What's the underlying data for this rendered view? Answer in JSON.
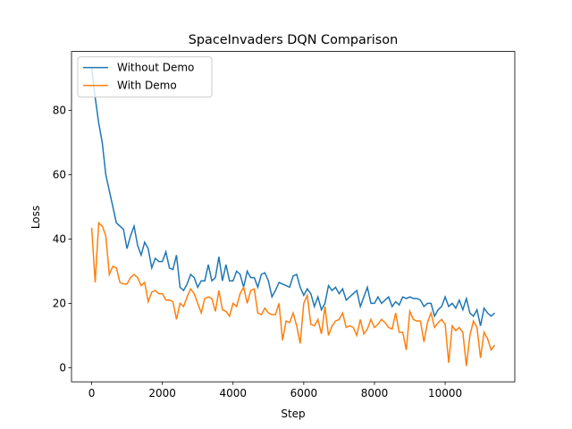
{
  "chart_data": {
    "type": "line",
    "title": "SpaceInvaders DQN Comparison",
    "x_label": "Step",
    "y_label": "Loss",
    "x": [
      0,
      100,
      200,
      300,
      400,
      500,
      600,
      700,
      800,
      900,
      1000,
      1100,
      1200,
      1300,
      1400,
      1500,
      1600,
      1700,
      1800,
      1900,
      2000,
      2100,
      2200,
      2300,
      2400,
      2500,
      2600,
      2700,
      2800,
      2900,
      3000,
      3100,
      3200,
      3300,
      3400,
      3500,
      3600,
      3700,
      3800,
      3900,
      4000,
      4100,
      4200,
      4300,
      4400,
      4500,
      4600,
      4700,
      4800,
      4900,
      5000,
      5100,
      5200,
      5300,
      5400,
      5500,
      5600,
      5700,
      5800,
      5900,
      6000,
      6100,
      6200,
      6300,
      6400,
      6500,
      6600,
      6700,
      6800,
      6900,
      7000,
      7100,
      7200,
      7300,
      7400,
      7500,
      7600,
      7700,
      7800,
      7900,
      8000,
      8100,
      8200,
      8300,
      8400,
      8500,
      8600,
      8700,
      8800,
      8900,
      9000,
      9100,
      9200,
      9300,
      9400,
      9500,
      9600,
      9700,
      9800,
      9900,
      10000,
      10100,
      10200,
      10300,
      10400,
      10500,
      10600,
      10700,
      10800,
      10900,
      11000,
      11100,
      11200,
      11300,
      11400
    ],
    "series": [
      {
        "name": "Without Demo",
        "color": "#1f77b4",
        "values": [
          93,
          84,
          76,
          70,
          60,
          55,
          50,
          45,
          44,
          43,
          37,
          41,
          44,
          38,
          35,
          39,
          37,
          31,
          34,
          33,
          33,
          36,
          31,
          30.5,
          35,
          25,
          24,
          26,
          29,
          28,
          25,
          27,
          27,
          32,
          27,
          28,
          34.5,
          27,
          32,
          27,
          27,
          30,
          29,
          25,
          30,
          28,
          28,
          25,
          29,
          29.5,
          27,
          22,
          24,
          26.5,
          26,
          25.5,
          25,
          28.5,
          29,
          25,
          22.5,
          24.5,
          23,
          19,
          22,
          18,
          20,
          25.5,
          24,
          25,
          23,
          24.5,
          21,
          22,
          23,
          24,
          19,
          22,
          25,
          20,
          20,
          22,
          20,
          21,
          22,
          19,
          20.5,
          19.5,
          22,
          21.5,
          22,
          21.5,
          21.5,
          21,
          19,
          20,
          20,
          16,
          18,
          19,
          22,
          19,
          20,
          18.5,
          21,
          18,
          21.5,
          17,
          16,
          18,
          13,
          18.5,
          17,
          16,
          17
        ]
      },
      {
        "name": "With Demo",
        "color": "#ff7f0e",
        "values": [
          43.5,
          26.5,
          45,
          44,
          41,
          29,
          31.5,
          31,
          26.5,
          26,
          26,
          28,
          29,
          28,
          25.5,
          26.5,
          20.5,
          23.5,
          24,
          23,
          23,
          21,
          21,
          20.5,
          15,
          20,
          19,
          22,
          24.5,
          23,
          20,
          17,
          21.5,
          22,
          21.5,
          17.5,
          24,
          18,
          17.5,
          16,
          20,
          19,
          23,
          25,
          20,
          24,
          24.5,
          17,
          16.5,
          18.5,
          17,
          16.5,
          16.5,
          20,
          8.5,
          14.5,
          14,
          17,
          13,
          7.5,
          20,
          22.5,
          13.5,
          13,
          15,
          10.5,
          19,
          10,
          13,
          14.5,
          15,
          17,
          12.5,
          13,
          12.5,
          10,
          15,
          10.5,
          12,
          15,
          12.5,
          13.5,
          15,
          14,
          12.5,
          12,
          17,
          11,
          11,
          5.5,
          17.5,
          15,
          14.5,
          14.5,
          8,
          14,
          17,
          12.5,
          14,
          15,
          13.5,
          1.5,
          13,
          11.5,
          12.5,
          11,
          0.5,
          10,
          14.5,
          12.5,
          3,
          11,
          9,
          5.5,
          7
        ]
      }
    ],
    "xlim": [
      -570,
      11970
    ],
    "ylim": [
      -4.4,
      98.3
    ],
    "xticks": [
      0,
      2000,
      4000,
      6000,
      8000,
      10000
    ],
    "yticks": [
      0,
      20,
      40,
      60,
      80
    ],
    "legend": "upper left"
  }
}
